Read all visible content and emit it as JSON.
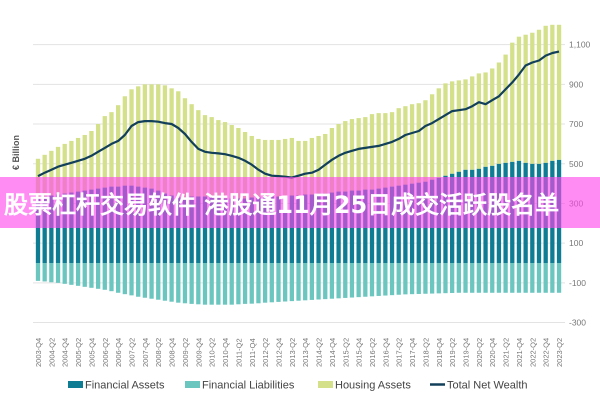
{
  "banner": {
    "text": "股票杠杆交易软件 港股通11月25日成交活跃股名单"
  },
  "chart_data": {
    "type": "bar",
    "stacked": true,
    "title": "",
    "ylabel": "€ Billion",
    "xlabel": "",
    "ylim": [
      -300,
      1200
    ],
    "yticks": [
      -300,
      -100,
      100,
      300,
      500,
      700,
      900,
      1100
    ],
    "ytick_labels": [
      "-300",
      "-100",
      "100",
      "300",
      "500",
      "700",
      "900",
      "1,100"
    ],
    "grid": true,
    "legend_position": "bottom",
    "colors": {
      "Financial Assets": "#0e7c93",
      "Financial Liabilities": "#6cc6c0",
      "Housing Assets": "#d4e08a",
      "Total Net Wealth": "#123f5a"
    },
    "start_quarter": "2003-Q4",
    "end_quarter": "2023-Q2",
    "x_tick_labels": [
      "2003-Q4",
      "2004-Q2",
      "2004-Q4",
      "2005-Q2",
      "2005-Q4",
      "2006-Q2",
      "2006-Q4",
      "2007-Q2",
      "2007-Q4",
      "2008-Q2",
      "2008-Q4",
      "2009-Q2",
      "2009-Q4",
      "2010-Q2",
      "2010-Q4",
      "2011-Q2",
      "2011-Q4",
      "2012-Q2",
      "2012-Q4",
      "2013-Q2",
      "2013-Q4",
      "2014-Q2",
      "2014-Q4",
      "2015-Q2",
      "2015-Q4",
      "2016-Q2",
      "2016-Q4",
      "2017-Q2",
      "2017-Q4",
      "2018-Q2",
      "2018-Q4",
      "2019-Q2",
      "2019-Q4",
      "2020-Q2",
      "2020-Q4",
      "2021-Q2",
      "2021-Q4",
      "2022-Q2",
      "2022-Q4",
      "2023-Q2"
    ],
    "series": [
      {
        "name": "Financial Assets",
        "type": "bar",
        "values": [
          330,
          335,
          340,
          345,
          350,
          355,
          360,
          365,
          370,
          375,
          380,
          385,
          385,
          390,
          390,
          385,
          380,
          375,
          365,
          350,
          340,
          330,
          330,
          335,
          335,
          335,
          330,
          330,
          325,
          325,
          325,
          325,
          330,
          330,
          330,
          335,
          335,
          340,
          340,
          340,
          345,
          345,
          350,
          350,
          355,
          360,
          360,
          365,
          365,
          370,
          370,
          375,
          380,
          385,
          390,
          395,
          400,
          405,
          410,
          420,
          430,
          440,
          450,
          460,
          470,
          470,
          475,
          485,
          490,
          500,
          505,
          510,
          515,
          505,
          500,
          500,
          505,
          515,
          520
        ]
      },
      {
        "name": "Financial Liabilities",
        "type": "bar",
        "values": [
          -90,
          -93,
          -97,
          -100,
          -105,
          -110,
          -115,
          -120,
          -125,
          -130,
          -135,
          -142,
          -150,
          -157,
          -163,
          -170,
          -175,
          -180,
          -185,
          -190,
          -195,
          -200,
          -203,
          -206,
          -208,
          -210,
          -210,
          -210,
          -210,
          -210,
          -208,
          -206,
          -205,
          -203,
          -200,
          -198,
          -196,
          -194,
          -192,
          -190,
          -188,
          -186,
          -184,
          -182,
          -180,
          -178,
          -176,
          -174,
          -172,
          -170,
          -168,
          -166,
          -164,
          -162,
          -160,
          -158,
          -157,
          -156,
          -155,
          -154,
          -153,
          -152,
          -151,
          -150,
          -150,
          -150,
          -150,
          -150,
          -150,
          -150,
          -150,
          -150,
          -150,
          -150,
          -150,
          -150,
          -150,
          -150,
          -150
        ]
      },
      {
        "name": "Housing Assets",
        "type": "bar",
        "values": [
          195,
          210,
          225,
          240,
          250,
          260,
          270,
          280,
          295,
          325,
          360,
          375,
          410,
          450,
          485,
          505,
          520,
          525,
          535,
          545,
          540,
          535,
          500,
          465,
          435,
          410,
          405,
          390,
          385,
          370,
          355,
          335,
          310,
          295,
          290,
          285,
          285,
          285,
          290,
          275,
          270,
          285,
          290,
          300,
          325,
          340,
          355,
          360,
          365,
          365,
          380,
          380,
          375,
          375,
          390,
          395,
          400,
          400,
          410,
          430,
          450,
          465,
          465,
          460,
          455,
          470,
          480,
          475,
          490,
          510,
          545,
          600,
          625,
          645,
          660,
          675,
          690,
          685,
          680
        ]
      },
      {
        "name": "Total Net Wealth",
        "type": "line",
        "values": [
          438,
          455,
          470,
          485,
          495,
          505,
          515,
          525,
          540,
          560,
          580,
          600,
          615,
          645,
          690,
          710,
          715,
          715,
          712,
          705,
          700,
          680,
          650,
          610,
          575,
          560,
          555,
          552,
          548,
          540,
          530,
          515,
          495,
          470,
          450,
          440,
          438,
          435,
          430,
          440,
          450,
          455,
          470,
          495,
          520,
          540,
          555,
          565,
          575,
          580,
          585,
          590,
          600,
          610,
          625,
          645,
          655,
          665,
          690,
          705,
          725,
          745,
          765,
          770,
          775,
          790,
          810,
          800,
          820,
          840,
          875,
          910,
          950,
          995,
          1010,
          1020,
          1045,
          1058,
          1065
        ]
      }
    ]
  }
}
